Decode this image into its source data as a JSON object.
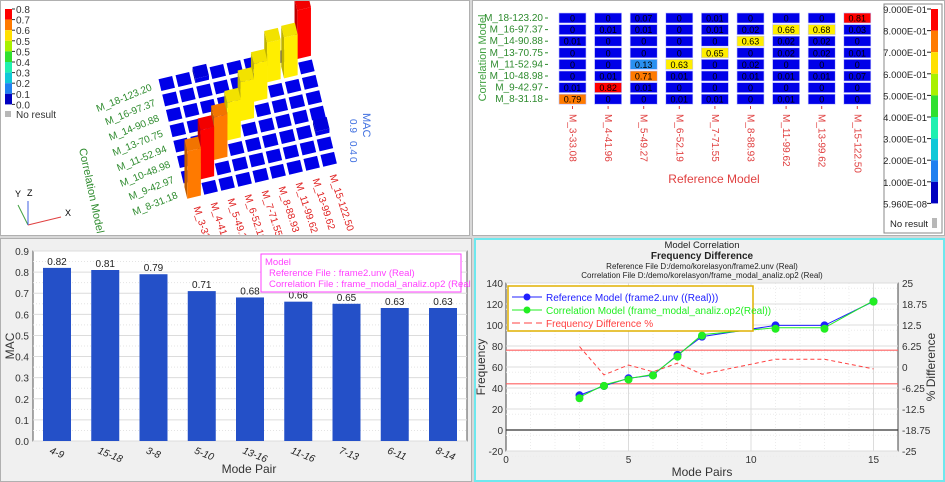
{
  "colors": {
    "red": "#ff0000",
    "orange": "#ff7a00",
    "yellow": "#ffee00",
    "light_blue": "#2a90f0",
    "blue": "#0000e8",
    "bar_blue": "#2450c8",
    "ref_line": "#2020ff",
    "corr_line": "#22ee22",
    "diff_line": "#ff4040",
    "legend_border": "#e0b000",
    "model_box": "#ff40ff"
  },
  "mac_3d": {
    "legend_labels": [
      "0.8",
      "0.7",
      "0.6",
      "0.5",
      "0.5",
      "0.4",
      "0.3",
      "0.2",
      "0.1",
      "0.0"
    ],
    "legend_colors": [
      "#ff0000",
      "#ff7a00",
      "#ffe000",
      "#a8f000",
      "#30e030",
      "#20f0b0",
      "#10c8d8",
      "#2080f0",
      "#0000c0"
    ],
    "no_result": "No result",
    "row_axis_title": "Correlation Model",
    "z_axis_title": "MAC",
    "z_ticks": [
      "0.9",
      "0.4",
      "0"
    ],
    "triad": {
      "x": "X",
      "y": "Y",
      "z": "Z"
    }
  },
  "mac_matrix": {
    "row_axis_title": "Correlation Model",
    "col_axis_title": "Reference Model",
    "rows": [
      "M_18-123.20",
      "M_16-97.37",
      "M_14-90.88",
      "M_13-70.75",
      "M_11-52.94",
      "M_10-48.98",
      "M_9-42.97",
      "M_8-31.18"
    ],
    "cols": [
      "M_3-33.08",
      "M_4-41.96",
      "M_5-49.27",
      "M_6-52.19",
      "M_7-71.55",
      "M_8-88.93",
      "M_11-99.62",
      "M_13-99.62",
      "M_15-122.50"
    ],
    "values": [
      [
        "0",
        "0",
        "0.07",
        "0",
        "0.01",
        "0",
        "0",
        "0",
        "0.81"
      ],
      [
        "0",
        "0.01",
        "0.01",
        "0",
        "0.01",
        "0.02",
        "0.66",
        "0.68",
        "0.03"
      ],
      [
        "0.01",
        "0",
        "0",
        "0",
        "0",
        "0.63",
        "0.02",
        "0.02",
        "0"
      ],
      [
        "0",
        "0",
        "0",
        "0",
        "0.65",
        "0",
        "0.02",
        "0.02",
        "0.01"
      ],
      [
        "0",
        "0",
        "0.13",
        "0.63",
        "0",
        "0.02",
        "0",
        "0",
        "0"
      ],
      [
        "0",
        "0.01",
        "0.71",
        "0.01",
        "0",
        "0.01",
        "0.01",
        "0.01",
        "0.07"
      ],
      [
        "0.01",
        "0.82",
        "0.01",
        "0",
        "0",
        "0",
        "0",
        "0",
        "0"
      ],
      [
        "0.79",
        "0",
        "0",
        "0.01",
        "0.01",
        "0",
        "0.01",
        "0",
        "0"
      ]
    ],
    "colorbar_labels": [
      "9.000E-01",
      "8.000E-01",
      "7.000E-01",
      "6.000E-01",
      "5.000E-01",
      "4.000E-01",
      "3.000E-01",
      "2.000E-01",
      "1.000E-01",
      "5.960E-08"
    ],
    "colorbar_colors": [
      "#ff0000",
      "#ff7a00",
      "#ffe000",
      "#a8f000",
      "#30e030",
      "#20f0b0",
      "#10c8d8",
      "#2080f0",
      "#0000c0"
    ],
    "no_result": "No result"
  },
  "chart_data": [
    {
      "type": "bar",
      "categories": [
        "4-9",
        "15-18",
        "3-8",
        "5-10",
        "13-16",
        "11-16",
        "7-13",
        "6-11",
        "8-14"
      ],
      "values": [
        0.82,
        0.81,
        0.79,
        0.71,
        0.68,
        0.66,
        0.65,
        0.63,
        0.63
      ],
      "data_labels": [
        "0.82",
        "0.81",
        "0.79",
        "0.71",
        "0.68",
        "0.66",
        "0.65",
        "0.63",
        "0.63"
      ],
      "xlabel": "Mode Pair",
      "ylabel": "MAC",
      "ylim": [
        0,
        0.9
      ],
      "yticks": [
        "0.0",
        "0.1",
        "0.2",
        "0.3",
        "0.4",
        "0.5",
        "0.6",
        "0.7",
        "0.8",
        "0.9"
      ],
      "grid": true,
      "legend_box": [
        "Model",
        "Reference File : frame2.unv (Real)",
        "Correlation File : frame_modal_analiz.op2 (Real)"
      ]
    },
    {
      "type": "line",
      "title_lines": [
        "Model Correlation",
        "Frequency Difference",
        "Reference File  D:/demo/korelasyon/frame2.unv (Real)",
        "Correlation File  D:/demo/korelasyon/frame_modal_analiz.op2 (Real)"
      ],
      "xlabel": "Mode Pairs",
      "ylabel": "Frequency",
      "y2label": "% Difference",
      "xlim": [
        0,
        16
      ],
      "ylim": [
        -20,
        140
      ],
      "y2lim": [
        -25,
        25
      ],
      "xticks": [
        "0",
        "5",
        "10",
        "15"
      ],
      "yticks": [
        "-20",
        "0",
        "20",
        "40",
        "60",
        "80",
        "100",
        "120",
        "140"
      ],
      "y2ticks": [
        "-25",
        "-18.75",
        "-12.5",
        "-6.25",
        "0",
        "6.25",
        "12.5",
        "18.75",
        "25"
      ],
      "x": [
        3,
        4,
        5,
        6,
        7,
        8,
        11,
        13,
        15
      ],
      "series": [
        {
          "name": "Reference Model (frame2.unv ((Real)))",
          "axis": "left",
          "values": [
            33.08,
            41.96,
            49.27,
            52.19,
            71.55,
            88.93,
            99.62,
            99.62,
            122.5
          ]
        },
        {
          "name": "Correlation Model (frame_modal_analiz.op2(Real))",
          "axis": "left",
          "values": [
            31.18,
            42.97,
            48.98,
            52.94,
            70.75,
            90.88,
            97.37,
            97.37,
            123.2
          ]
        },
        {
          "name": "Frequency Difference %",
          "axis": "right",
          "values": [
            6.09,
            -2.35,
            0.59,
            -1.42,
            1.13,
            -2.15,
            2.31,
            2.31,
            -0.57
          ]
        }
      ],
      "threshold_lines_percent": [
        5,
        -5
      ],
      "legend_placement": "top-left",
      "grid": true
    }
  ]
}
